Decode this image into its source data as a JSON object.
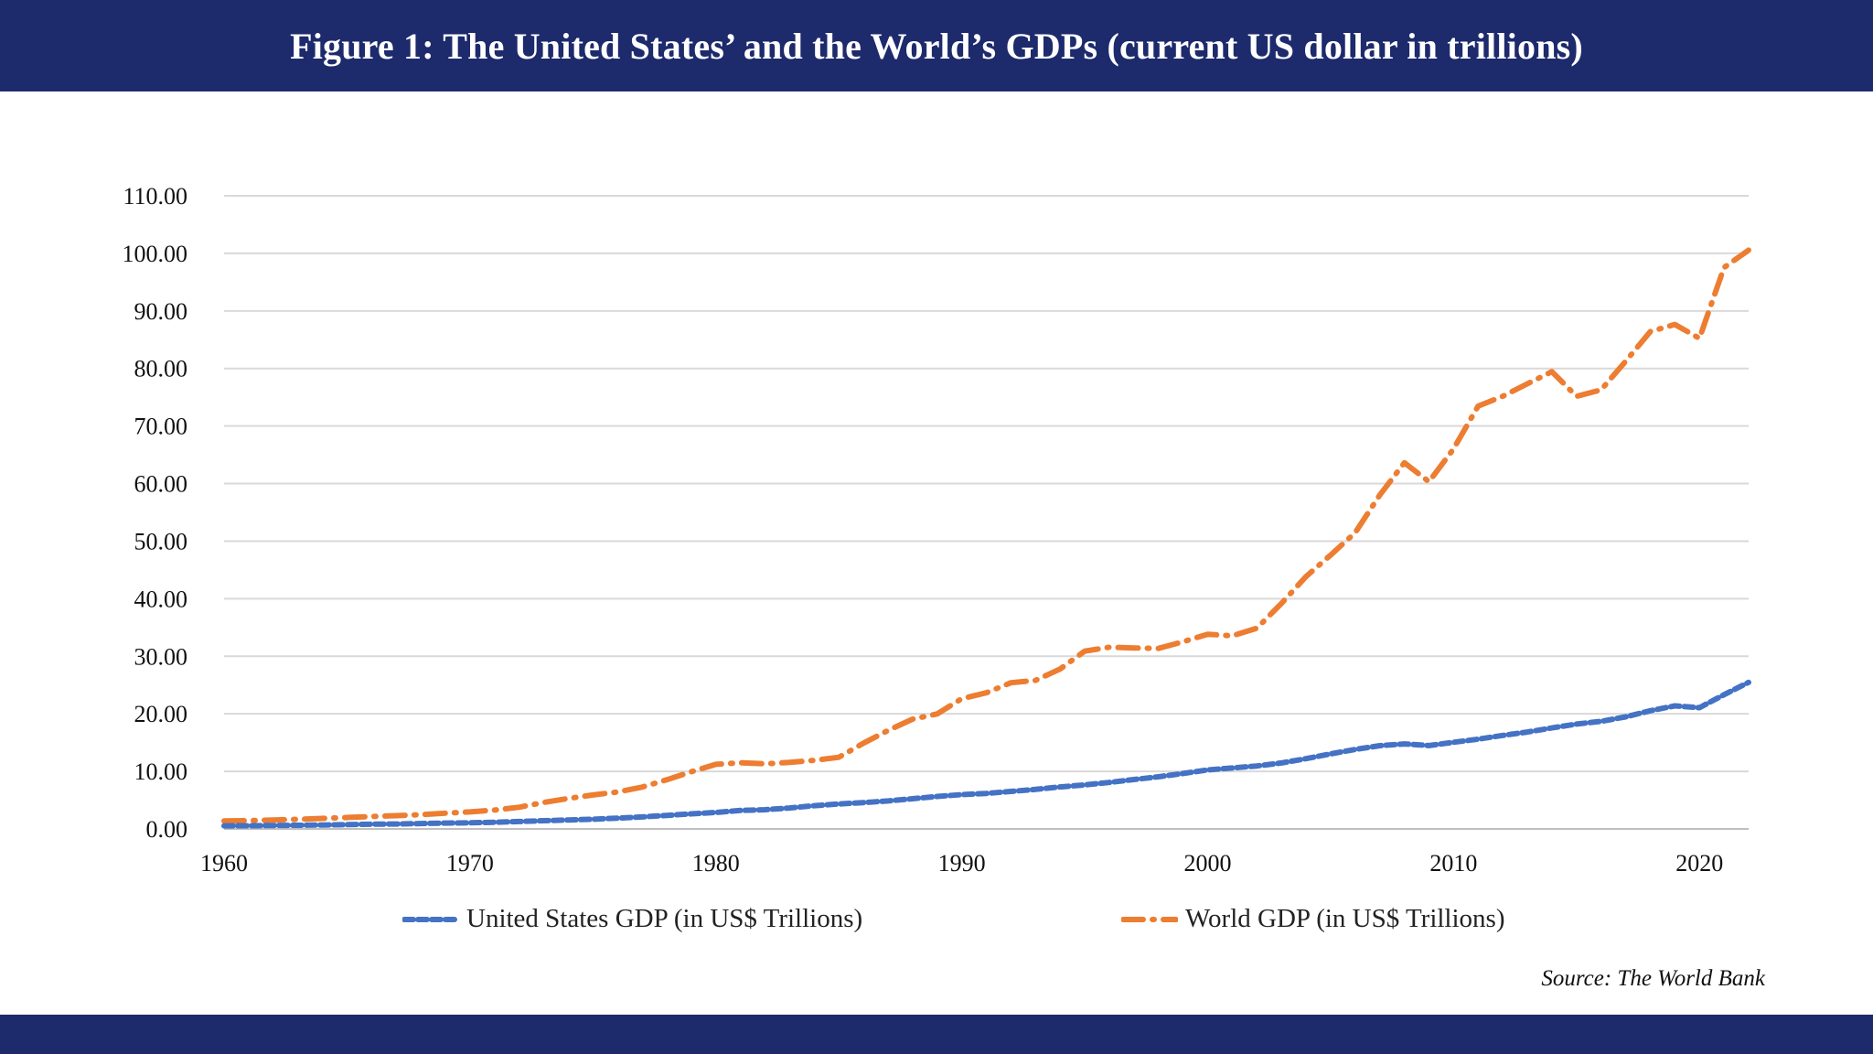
{
  "title": "Figure 1: The United States’ and the World’s GDPs (current US dollar in trillions)",
  "source": "Source: The World Bank",
  "colors": {
    "band": "#1d2a6c",
    "us": "#4472c4",
    "world": "#ed7d31",
    "grid": "#d9d9d9"
  },
  "chart_data": {
    "type": "line",
    "title": "Figure 1: The United States’ and the World’s GDPs (current US dollar in trillions)",
    "xlabel": "",
    "ylabel": "",
    "xlim": [
      1960,
      2022
    ],
    "ylim": [
      0,
      110
    ],
    "x_ticks": [
      "1960",
      "1970",
      "1980",
      "1990",
      "2000",
      "2010",
      "2020"
    ],
    "y_ticks": [
      "0.00",
      "10.00",
      "20.00",
      "30.00",
      "40.00",
      "50.00",
      "60.00",
      "70.00",
      "80.00",
      "90.00",
      "100.00",
      "110.00"
    ],
    "grid": true,
    "legend_position": "bottom",
    "x": [
      1960,
      1961,
      1962,
      1963,
      1964,
      1965,
      1966,
      1967,
      1968,
      1969,
      1970,
      1971,
      1972,
      1973,
      1974,
      1975,
      1976,
      1977,
      1978,
      1979,
      1980,
      1981,
      1982,
      1983,
      1984,
      1985,
      1986,
      1987,
      1988,
      1989,
      1990,
      1991,
      1992,
      1993,
      1994,
      1995,
      1996,
      1997,
      1998,
      1999,
      2000,
      2001,
      2002,
      2003,
      2004,
      2005,
      2006,
      2007,
      2008,
      2009,
      2010,
      2011,
      2012,
      2013,
      2014,
      2015,
      2016,
      2017,
      2018,
      2019,
      2020,
      2021,
      2022
    ],
    "series": [
      {
        "name": "United States GDP (in US$ Trillions)",
        "style": "dashed",
        "color": "#4472c4",
        "values": [
          0.54,
          0.56,
          0.6,
          0.64,
          0.69,
          0.74,
          0.82,
          0.86,
          0.94,
          1.02,
          1.07,
          1.16,
          1.28,
          1.43,
          1.55,
          1.68,
          1.87,
          2.08,
          2.35,
          2.63,
          2.86,
          3.21,
          3.34,
          3.64,
          4.04,
          4.34,
          4.58,
          4.86,
          5.24,
          5.64,
          5.96,
          6.16,
          6.52,
          6.86,
          7.29,
          7.64,
          8.07,
          8.58,
          9.06,
          9.63,
          10.25,
          10.58,
          10.94,
          11.46,
          12.21,
          13.04,
          13.82,
          14.47,
          14.77,
          14.48,
          15.05,
          15.6,
          16.25,
          16.84,
          17.55,
          18.21,
          18.7,
          19.48,
          20.53,
          21.38,
          21.06,
          23.32,
          25.46
        ]
      },
      {
        "name": "World GDP (in US$ Trillions)",
        "style": "dash-dot",
        "color": "#ed7d31",
        "values": [
          1.38,
          1.45,
          1.55,
          1.67,
          1.83,
          1.99,
          2.16,
          2.3,
          2.48,
          2.73,
          2.96,
          3.27,
          3.77,
          4.59,
          5.3,
          5.9,
          6.42,
          7.26,
          8.54,
          9.93,
          11.23,
          11.5,
          11.31,
          11.56,
          11.92,
          12.45,
          14.89,
          17.1,
          19.07,
          19.98,
          22.63,
          23.65,
          25.4,
          25.82,
          27.78,
          30.88,
          31.57,
          31.44,
          31.36,
          32.52,
          33.83,
          33.55,
          34.87,
          39.17,
          43.84,
          47.58,
          51.47,
          58.01,
          63.61,
          60.33,
          66.05,
          73.45,
          75.17,
          77.33,
          79.45,
          75.16,
          76.28,
          81.26,
          86.41,
          87.65,
          85.24,
          97.53,
          100.56
        ]
      }
    ]
  }
}
